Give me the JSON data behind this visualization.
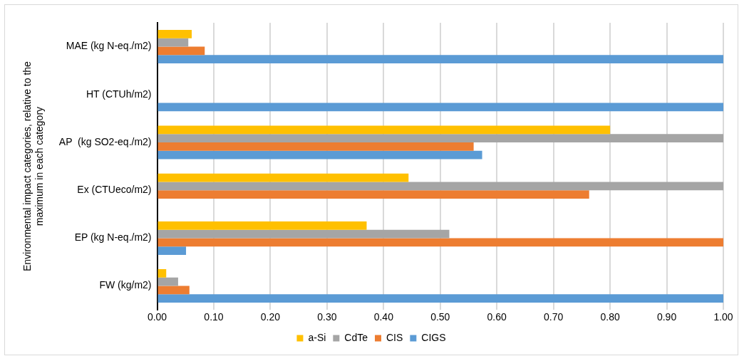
{
  "chart_data": {
    "type": "bar",
    "orientation": "horizontal",
    "ylabel": "Environmental impact categories, relative to the maximum in each category",
    "categories": [
      "MAE (kg N-eq./m2)",
      "HT (CTUh/m2)",
      "AP  (kg SO2-eq./m2)",
      "Ex (CTUeco/m2)",
      "EP (kg N-eq./m2)",
      "FW (kg/m2)"
    ],
    "series": [
      {
        "name": "a-Si",
        "color": "#ffc000",
        "values": [
          0.061,
          null,
          0.8,
          0.444,
          0.37,
          0.016
        ]
      },
      {
        "name": "CdTe",
        "color": "#a5a5a5",
        "values": [
          0.055,
          null,
          1.0,
          1.0,
          0.516,
          0.037
        ]
      },
      {
        "name": "CIS",
        "color": "#ed7d31",
        "values": [
          0.084,
          null,
          0.559,
          0.763,
          1.0,
          0.057
        ]
      },
      {
        "name": "CIGS",
        "color": "#5b9bd5",
        "values": [
          1.0,
          1.0,
          0.574,
          null,
          0.051,
          1.0
        ]
      }
    ],
    "xlim": [
      0,
      1
    ],
    "xticks": [
      {
        "value": 0,
        "label": "0.00"
      },
      {
        "value": 0.1,
        "label": "0.10"
      },
      {
        "value": 0.2,
        "label": "0.20"
      },
      {
        "value": 0.3,
        "label": "0.30"
      },
      {
        "value": 0.4,
        "label": "0.40"
      },
      {
        "value": 0.5,
        "label": "0.50"
      },
      {
        "value": 0.6,
        "label": "0.60"
      },
      {
        "value": 0.7,
        "label": "0.70"
      },
      {
        "value": 0.8,
        "label": "0.80"
      },
      {
        "value": 0.9,
        "label": "0.90"
      },
      {
        "value": 1.0,
        "label": "1.00"
      }
    ],
    "grid": "x",
    "legend": "bottom"
  }
}
